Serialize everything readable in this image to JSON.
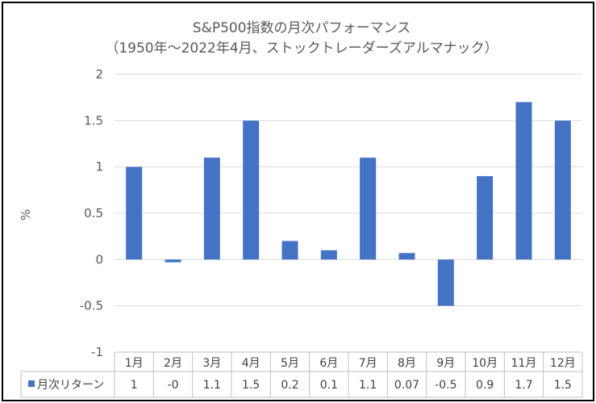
{
  "chart_data": {
    "type": "bar",
    "title": "S&P500指数の月次パフォーマンス",
    "subtitle": "（1950年～2022年4月、ストックトレーダーズアルマナック）",
    "ylabel": "%",
    "ylim": [
      -1,
      2
    ],
    "yticks": [
      -1,
      -0.5,
      0,
      0.5,
      1,
      1.5,
      2
    ],
    "ytick_labels": [
      "-1",
      "-0.5",
      "0",
      "0.5",
      "1",
      "1.5",
      "2"
    ],
    "grid": true,
    "categories": [
      "1月",
      "2月",
      "3月",
      "4月",
      "5月",
      "6月",
      "7月",
      "8月",
      "9月",
      "10月",
      "11月",
      "12月"
    ],
    "series": [
      {
        "name": "月次リターン",
        "color": "#4472C4",
        "values": [
          1,
          -0.03,
          1.1,
          1.5,
          0.2,
          0.1,
          1.1,
          0.07,
          -0.5,
          0.9,
          1.7,
          1.5
        ],
        "value_labels": [
          "1",
          "-0",
          "1.1",
          "1.5",
          "0.2",
          "0.1",
          "1.1",
          "0.07",
          "-0.5",
          "0.9",
          "1.7",
          "1.5"
        ]
      }
    ],
    "legend": "data-table"
  }
}
